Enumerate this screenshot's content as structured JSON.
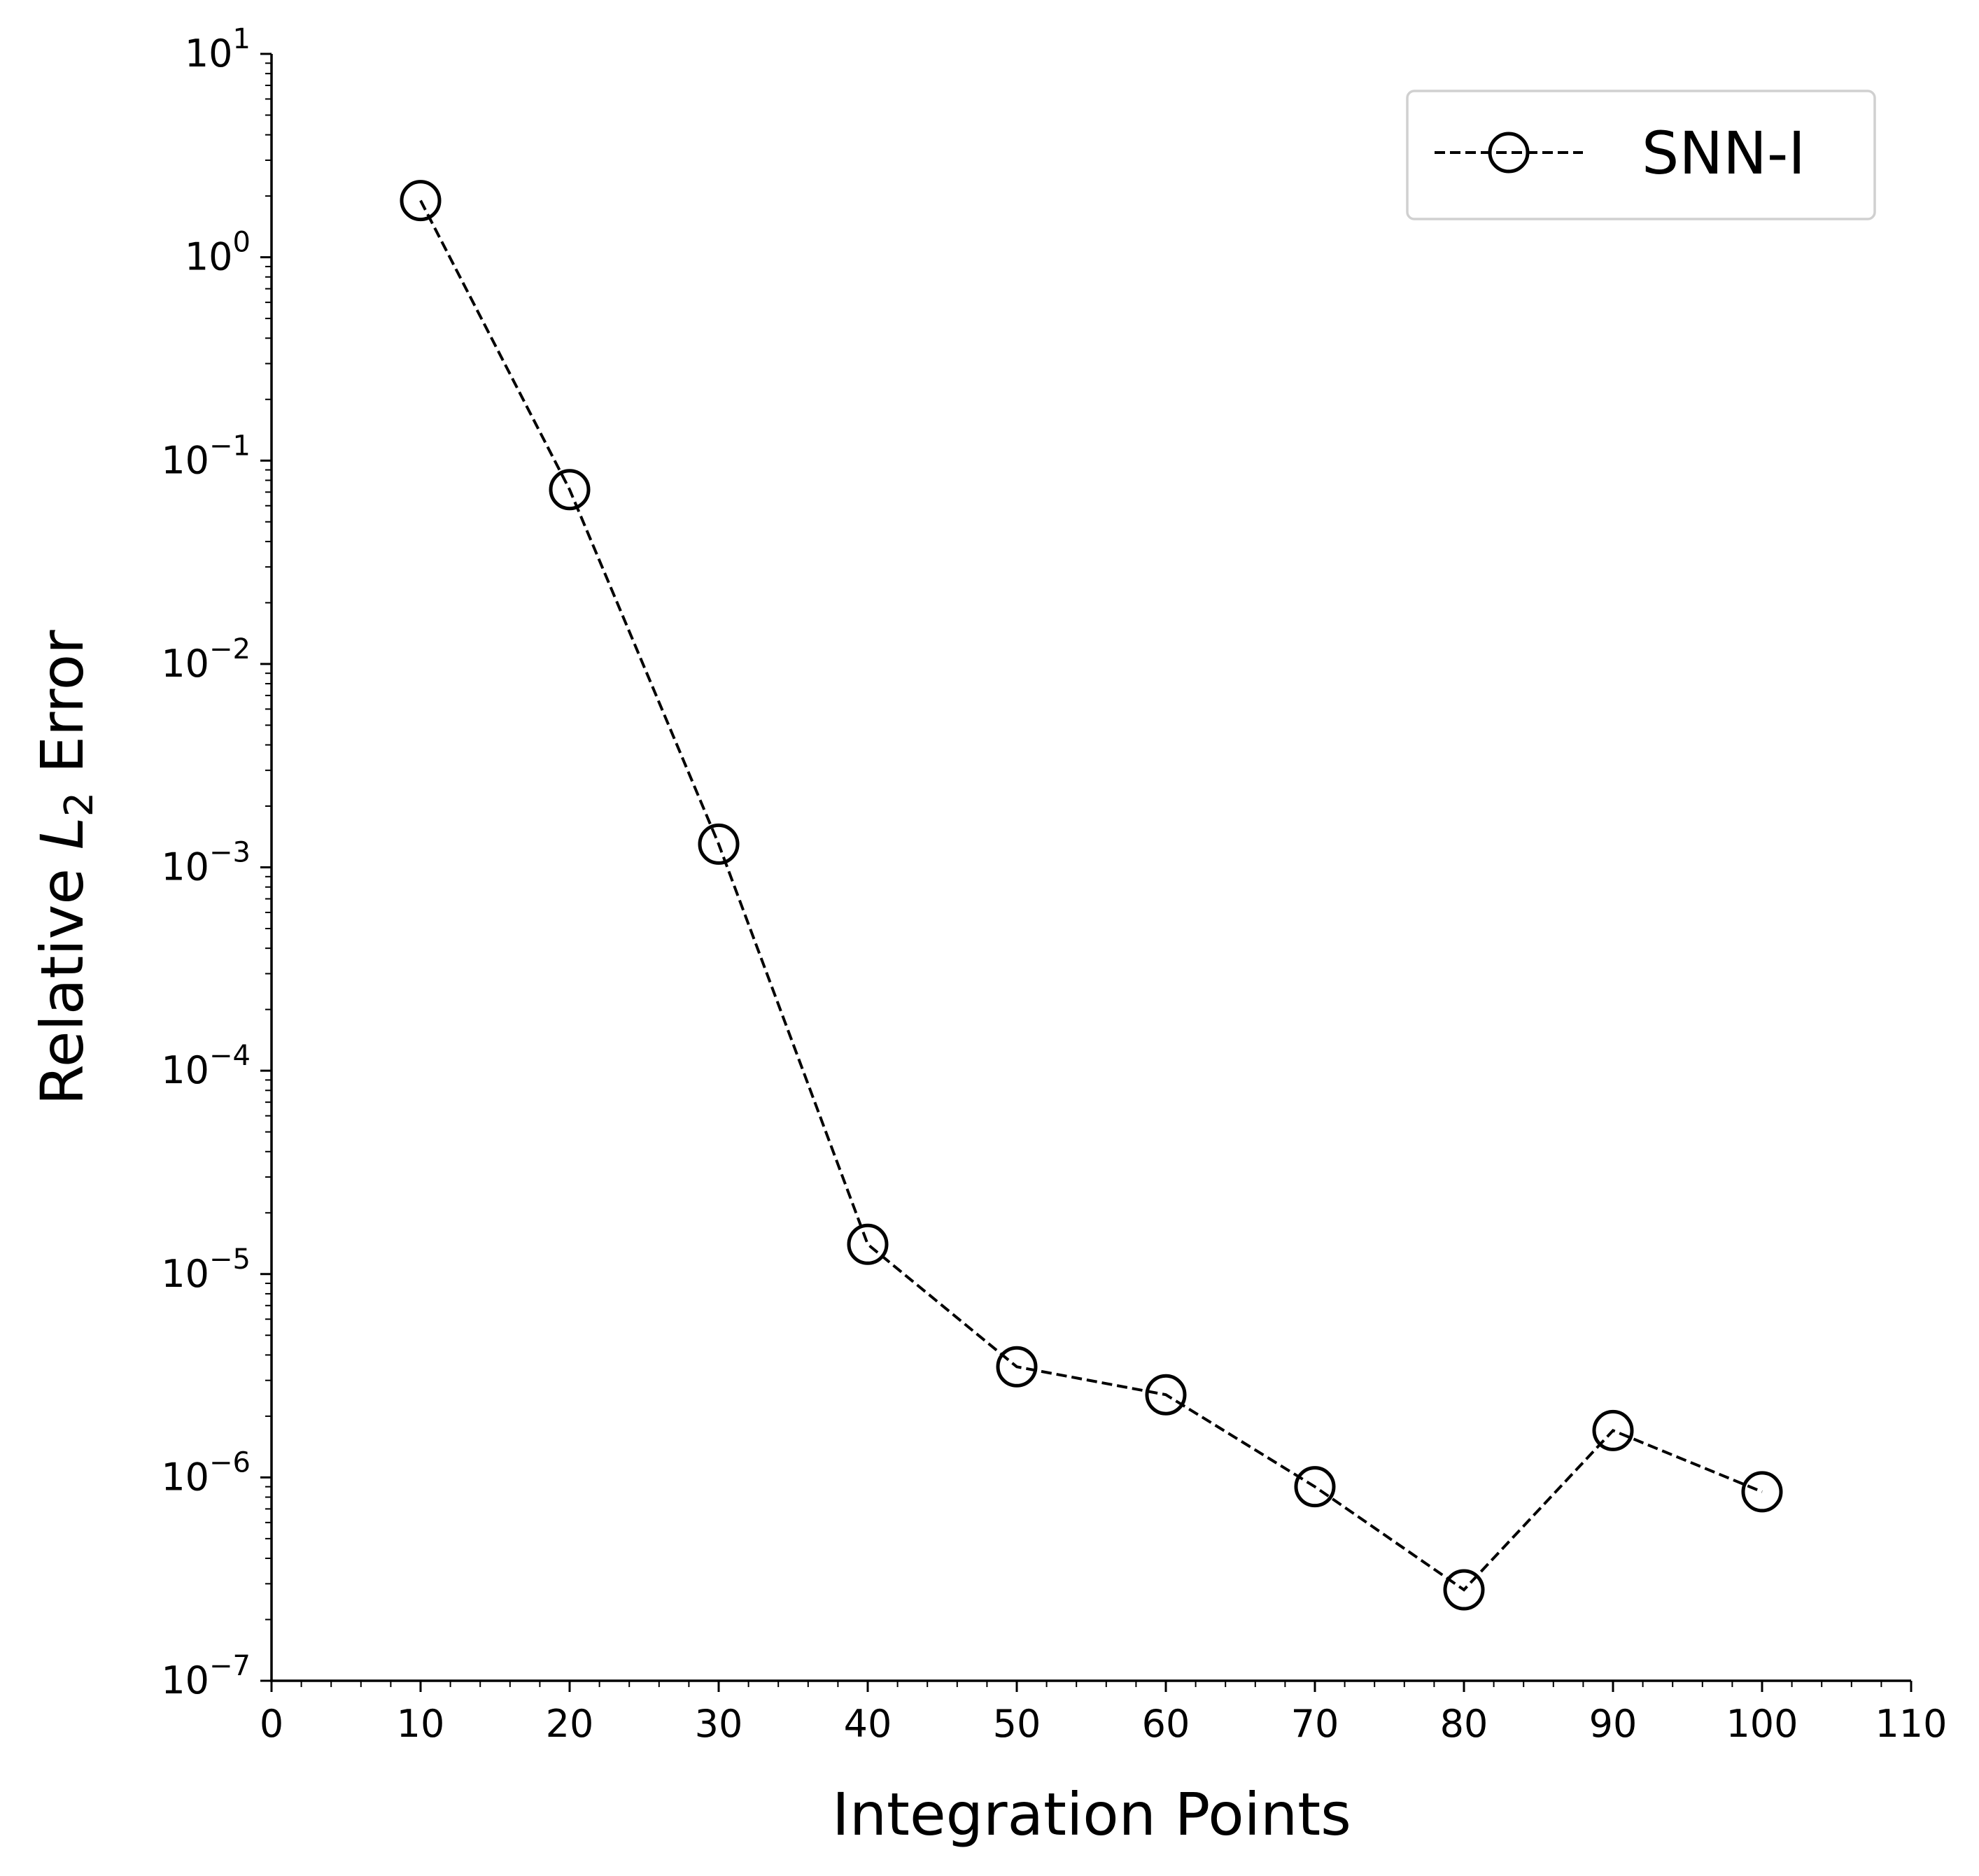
{
  "chart_data": {
    "type": "line",
    "xlabel": "Integration Points",
    "ylabel": {
      "prefix": "Relative ",
      "symbol": "L",
      "subscript": "2",
      "suffix": " Error"
    },
    "xlim": [
      0,
      110
    ],
    "ylim": [
      1e-07,
      10
    ],
    "yscale": "log",
    "x_ticks": [
      "0",
      "10",
      "20",
      "30",
      "40",
      "50",
      "60",
      "70",
      "80",
      "90",
      "100",
      "110"
    ],
    "y_ticks": [
      {
        "base": "10",
        "exp": "1"
      },
      {
        "base": "10",
        "exp": "0"
      },
      {
        "base": "10",
        "exp": "−1"
      },
      {
        "base": "10",
        "exp": "−2"
      },
      {
        "base": "10",
        "exp": "−3"
      },
      {
        "base": "10",
        "exp": "−4"
      },
      {
        "base": "10",
        "exp": "−5"
      },
      {
        "base": "10",
        "exp": "−6"
      },
      {
        "base": "10",
        "exp": "−7"
      }
    ],
    "grid": false,
    "legend_position": "top-right",
    "series": [
      {
        "name": "SNN-I",
        "line_style": "dashed",
        "marker": "open-circle",
        "color": "#000000",
        "x": [
          10,
          20,
          30,
          40,
          50,
          60,
          70,
          80,
          90,
          100
        ],
        "y": [
          1.9,
          0.072,
          0.0013,
          1.4e-05,
          3.5e-06,
          2.55e-06,
          9e-07,
          2.8e-07,
          1.7e-06,
          8.5e-07
        ]
      }
    ]
  }
}
